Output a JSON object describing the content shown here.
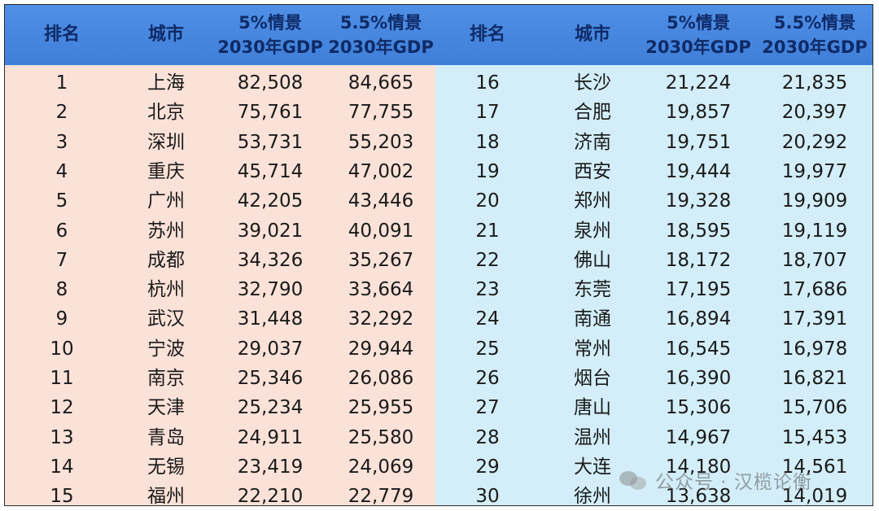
{
  "header": {
    "rank": "排名",
    "city": "城市",
    "col_5_line1": "5%情景",
    "col_5_line2": "2030年GDP",
    "col_55_line1": "5.5%情景",
    "col_55_line2": "2030年GDP"
  },
  "rows": [
    {
      "rank": "1",
      "city": "上海",
      "gdp5": "82,508",
      "gdp55": "84,665"
    },
    {
      "rank": "2",
      "city": "北京",
      "gdp5": "75,761",
      "gdp55": "77,755"
    },
    {
      "rank": "3",
      "city": "深圳",
      "gdp5": "53,731",
      "gdp55": "55,203"
    },
    {
      "rank": "4",
      "city": "重庆",
      "gdp5": "45,714",
      "gdp55": "47,002"
    },
    {
      "rank": "5",
      "city": "广州",
      "gdp5": "42,205",
      "gdp55": "43,446"
    },
    {
      "rank": "6",
      "city": "苏州",
      "gdp5": "39,021",
      "gdp55": "40,091"
    },
    {
      "rank": "7",
      "city": "成都",
      "gdp5": "34,326",
      "gdp55": "35,267"
    },
    {
      "rank": "8",
      "city": "杭州",
      "gdp5": "32,790",
      "gdp55": "33,664"
    },
    {
      "rank": "9",
      "city": "武汉",
      "gdp5": "31,448",
      "gdp55": "32,292"
    },
    {
      "rank": "10",
      "city": "宁波",
      "gdp5": "29,037",
      "gdp55": "29,944"
    },
    {
      "rank": "11",
      "city": "南京",
      "gdp5": "25,346",
      "gdp55": "26,086"
    },
    {
      "rank": "12",
      "city": "天津",
      "gdp5": "25,234",
      "gdp55": "25,955"
    },
    {
      "rank": "13",
      "city": "青岛",
      "gdp5": "24,911",
      "gdp55": "25,580"
    },
    {
      "rank": "14",
      "city": "无锡",
      "gdp5": "23,419",
      "gdp55": "24,069"
    },
    {
      "rank": "15",
      "city": "福州",
      "gdp5": "22,210",
      "gdp55": "22,779"
    },
    {
      "rank": "16",
      "city": "长沙",
      "gdp5": "21,224",
      "gdp55": "21,835"
    },
    {
      "rank": "17",
      "city": "合肥",
      "gdp5": "19,857",
      "gdp55": "20,397"
    },
    {
      "rank": "18",
      "city": "济南",
      "gdp5": "19,751",
      "gdp55": "20,292"
    },
    {
      "rank": "19",
      "city": "西安",
      "gdp5": "19,444",
      "gdp55": "19,977"
    },
    {
      "rank": "20",
      "city": "郑州",
      "gdp5": "19,328",
      "gdp55": "19,909"
    },
    {
      "rank": "21",
      "city": "泉州",
      "gdp5": "18,595",
      "gdp55": "19,119"
    },
    {
      "rank": "22",
      "city": "佛山",
      "gdp5": "18,172",
      "gdp55": "18,707"
    },
    {
      "rank": "23",
      "city": "东莞",
      "gdp5": "17,195",
      "gdp55": "17,686"
    },
    {
      "rank": "24",
      "city": "南通",
      "gdp5": "16,894",
      "gdp55": "17,391"
    },
    {
      "rank": "25",
      "city": "常州",
      "gdp5": "16,545",
      "gdp55": "16,978"
    },
    {
      "rank": "26",
      "city": "烟台",
      "gdp5": "16,390",
      "gdp55": "16,821"
    },
    {
      "rank": "27",
      "city": "唐山",
      "gdp5": "15,306",
      "gdp55": "15,706"
    },
    {
      "rank": "28",
      "city": "温州",
      "gdp5": "14,967",
      "gdp55": "15,453"
    },
    {
      "rank": "29",
      "city": "大连",
      "gdp5": "14,180",
      "gdp55": "14,561"
    },
    {
      "rank": "30",
      "city": "徐州",
      "gdp5": "13,638",
      "gdp55": "14,019"
    }
  ],
  "watermark": {
    "text": "公众号 · 汉榄论衡",
    "icon": "wechat-icon"
  },
  "colors": {
    "header": "#4585de",
    "header_text": "#0f2a66",
    "left_body": "#fbe2d8",
    "right_body": "#d3eef8"
  }
}
